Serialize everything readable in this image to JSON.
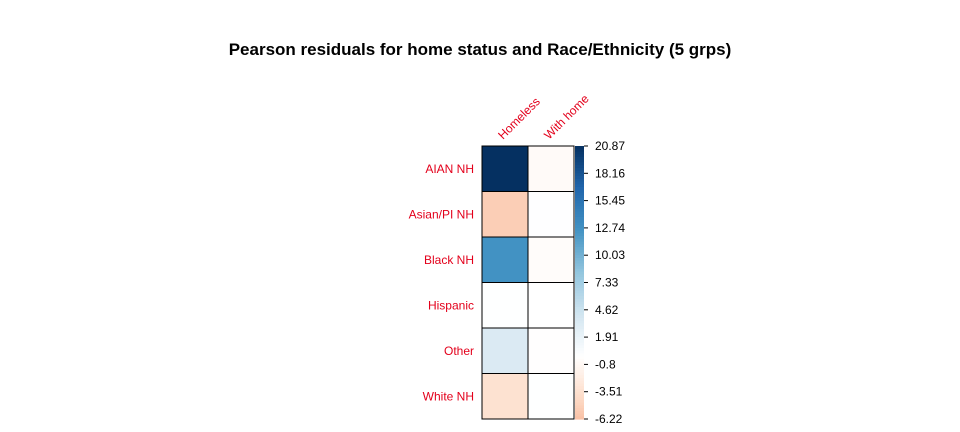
{
  "chart_data": {
    "type": "heatmap",
    "title": "Pearson residuals for home status and Race/Ethnicity (5 grps)",
    "rows": [
      "AIAN NH",
      "Asian/PI NH",
      "Black NH",
      "Hispanic",
      "Other",
      "White NH"
    ],
    "columns": [
      "Homeless",
      "With home"
    ],
    "values": [
      [
        20.87,
        -0.55
      ],
      [
        -5.2,
        0.1
      ],
      [
        12.6,
        -0.35
      ],
      [
        0.05,
        0.0
      ],
      [
        3.3,
        -0.1
      ],
      [
        -3.4,
        0.08
      ]
    ],
    "colorbar": {
      "ticks": [
        "20.87",
        "18.16",
        "15.45",
        "12.74",
        "10.03",
        "7.33",
        "4.62",
        "1.91",
        "-0.8",
        "-3.51",
        "-6.22"
      ],
      "min": -6.22,
      "max": 20.87
    },
    "colors": {
      "negative": "#67001f",
      "neutral": "#ffffff",
      "positive": "#053061",
      "label": "#e3001b"
    }
  }
}
